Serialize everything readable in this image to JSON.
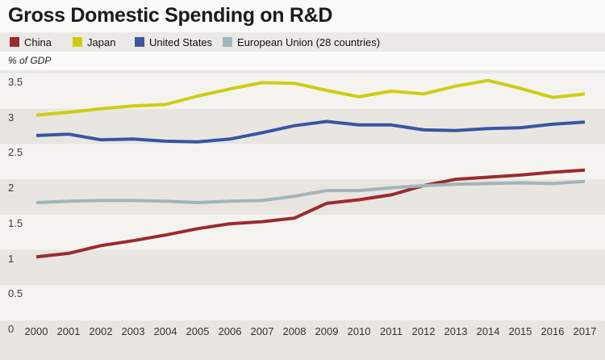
{
  "header": {
    "title": "Gross Domestic Spending on R&D"
  },
  "axis": {
    "y_unit_label": "% of GDP"
  },
  "colors": {
    "page_background": "#fafaf8",
    "legend_band": "#ebe9e5",
    "band_light": "#f4f3ef",
    "band_dark": "#e9e6e1",
    "title_text": "#1b1b1b",
    "tick_text": "#3a3a3a"
  },
  "chart_data": {
    "type": "line",
    "title": "Gross Domestic Spending on R&D",
    "ylabel": "% of GDP",
    "xlabel": "",
    "ylim": [
      0,
      3.55
    ],
    "yticks": [
      "3.5",
      "3",
      "2.5",
      "2",
      "1.5",
      "1",
      "0.5",
      "0"
    ],
    "grid": "alternating horizontal bands every 0.5",
    "legend_position": "top",
    "x": [
      2000,
      2001,
      2002,
      2003,
      2004,
      2005,
      2006,
      2007,
      2008,
      2009,
      2010,
      2011,
      2012,
      2013,
      2014,
      2015,
      2016,
      2017
    ],
    "series": [
      {
        "name": "China",
        "color": "#9c2a30",
        "values": [
          0.9,
          0.95,
          1.06,
          1.13,
          1.21,
          1.3,
          1.37,
          1.4,
          1.45,
          1.66,
          1.71,
          1.78,
          1.91,
          2.0,
          2.03,
          2.06,
          2.1,
          2.13
        ]
      },
      {
        "name": "Japan",
        "color": "#cdce12",
        "values": [
          2.91,
          2.95,
          3.0,
          3.04,
          3.06,
          3.18,
          3.28,
          3.37,
          3.36,
          3.26,
          3.17,
          3.25,
          3.21,
          3.32,
          3.4,
          3.29,
          3.16,
          3.21
        ]
      },
      {
        "name": "United States",
        "color": "#3b55a3",
        "values": [
          2.62,
          2.64,
          2.56,
          2.57,
          2.54,
          2.53,
          2.57,
          2.66,
          2.76,
          2.82,
          2.77,
          2.77,
          2.7,
          2.69,
          2.72,
          2.73,
          2.78,
          2.81
        ]
      },
      {
        "name": "European Union (28 countries)",
        "color": "#a2b5b9",
        "values": [
          1.67,
          1.69,
          1.7,
          1.7,
          1.69,
          1.67,
          1.69,
          1.7,
          1.76,
          1.84,
          1.84,
          1.88,
          1.91,
          1.93,
          1.94,
          1.95,
          1.94,
          1.97
        ]
      }
    ]
  }
}
